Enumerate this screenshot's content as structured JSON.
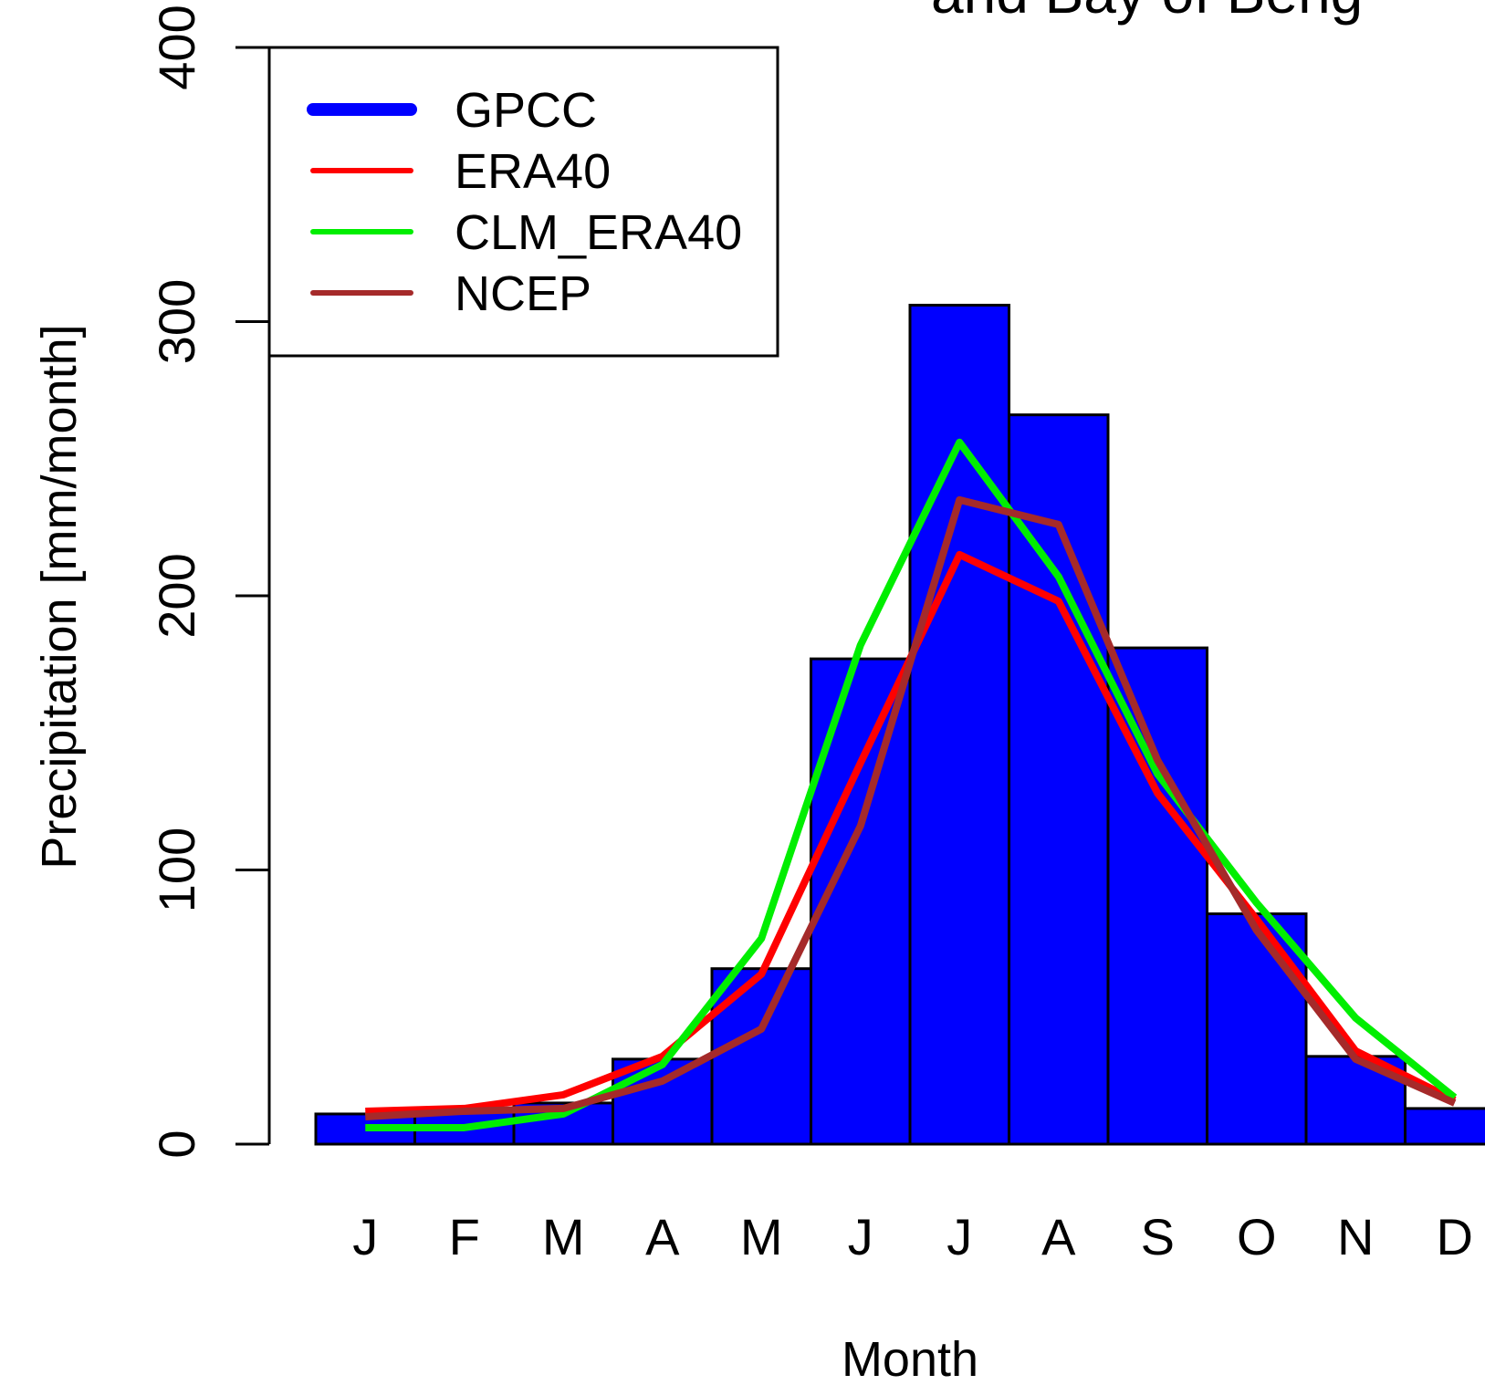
{
  "chart_data": {
    "type": "bar",
    "title": "and Bay of Beng",
    "xlabel": "Month",
    "ylabel": "Precipitation [mm/month]",
    "ylim": [
      0,
      400
    ],
    "yticks": [
      0,
      100,
      200,
      300,
      400
    ],
    "categories": [
      "J",
      "F",
      "M",
      "A",
      "M",
      "J",
      "J",
      "A",
      "S",
      "O",
      "N",
      "D"
    ],
    "bar_series": {
      "name": "GPCC",
      "color": "#0000ff",
      "values": [
        11,
        13,
        15,
        31,
        64,
        177,
        306,
        266,
        181,
        84,
        32,
        13
      ]
    },
    "line_series": [
      {
        "name": "ERA40",
        "color": "#ff0000",
        "values": [
          12,
          13,
          18,
          32,
          62,
          139,
          215,
          198,
          128,
          82,
          34,
          16
        ]
      },
      {
        "name": "CLM_ERA40",
        "color": "#00ee00",
        "values": [
          6,
          6,
          11,
          29,
          75,
          182,
          256,
          207,
          135,
          88,
          46,
          17
        ]
      },
      {
        "name": "NCEP",
        "color": "#a52a2a",
        "values": [
          10,
          12,
          13,
          23,
          42,
          116,
          235,
          226,
          140,
          78,
          31,
          15
        ]
      }
    ],
    "legend": {
      "placement": "top-left",
      "entries": [
        "GPCC",
        "ERA40",
        "CLM_ERA40",
        "NCEP"
      ]
    }
  }
}
